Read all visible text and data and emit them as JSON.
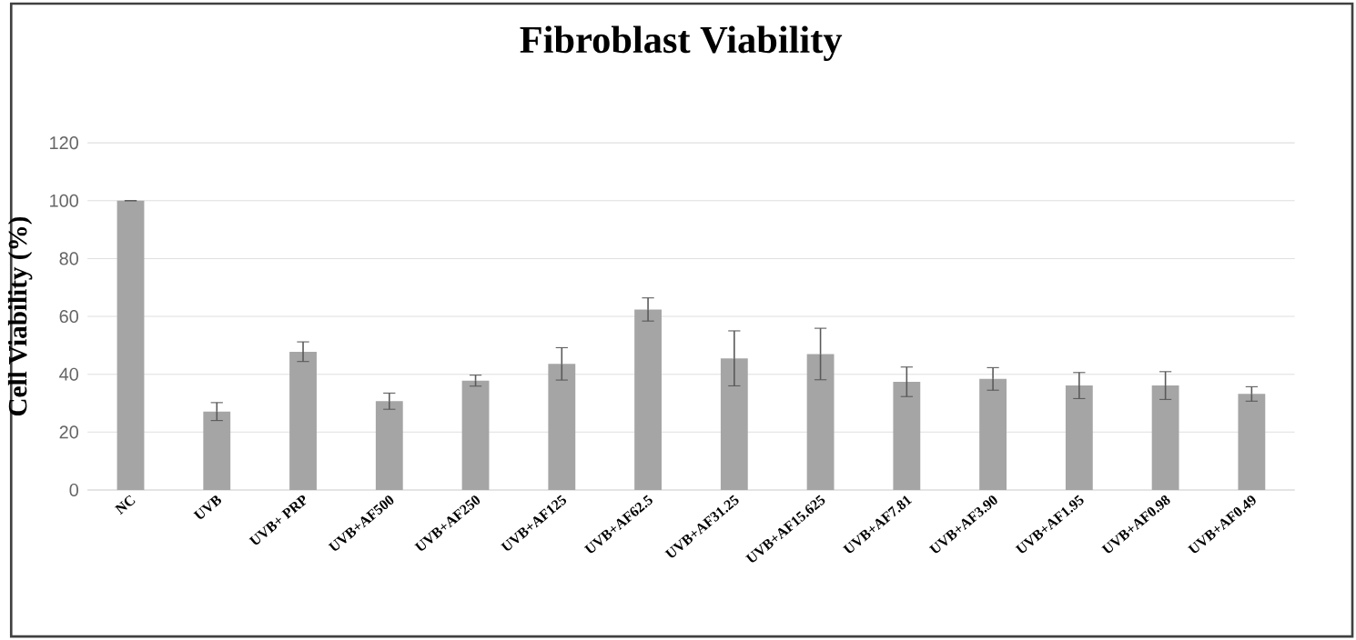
{
  "chart_data": {
    "type": "bar",
    "title": "Fibroblast Viability",
    "ylabel": "Cell Viability (%)",
    "categories": [
      "NC",
      "UVB",
      "UVB+ PRP",
      "UVB+AF500",
      "UVB+AF250",
      "UVB+AF125",
      "UVB+AF62.5",
      "UVB+AF31.25",
      "UVB+AF15.625",
      "UVB+AF7.81",
      "UVB+AF3.90",
      "UVB+AF1.95",
      "UVB+AF0.98",
      "UVB+AF0.49"
    ],
    "values": [
      100,
      27.1,
      47.8,
      30.7,
      37.8,
      43.6,
      62.4,
      45.5,
      47,
      37.4,
      38.4,
      36.1,
      36.1,
      33.2
    ],
    "errors": [
      0,
      3.1,
      3.4,
      2.8,
      1.9,
      5.6,
      4,
      9.5,
      8.9,
      5.1,
      3.9,
      4.5,
      4.8,
      2.5
    ],
    "color": "#a5a5a5",
    "ylim": [
      0,
      120
    ],
    "yticks": [
      0,
      20,
      40,
      60,
      80,
      100,
      120
    ],
    "grid": "y"
  }
}
